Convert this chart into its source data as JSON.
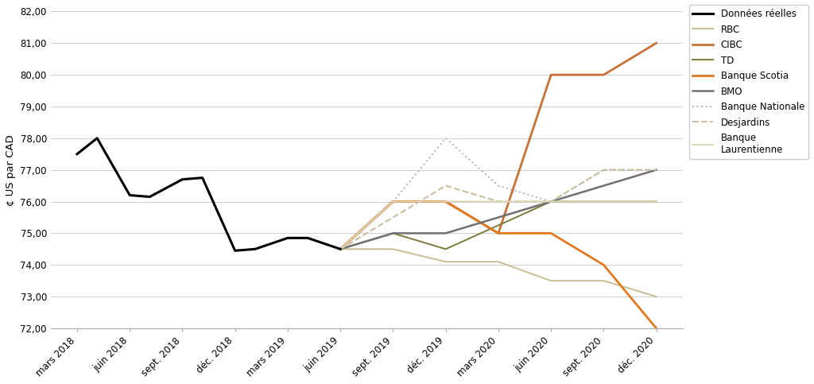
{
  "ylabel": "¢ US par CAD",
  "ylim": [
    72.0,
    82.0
  ],
  "yticks": [
    72.0,
    73.0,
    74.0,
    75.0,
    76.0,
    77.0,
    78.0,
    79.0,
    80.0,
    81.0,
    82.0
  ],
  "x_labels": [
    "mars 2018",
    "juin 2018",
    "sept. 2018",
    "déc. 2018",
    "mars 2019",
    "juin 2019",
    "sept. 2019",
    "déc. 2019",
    "mars 2020",
    "juin 2020",
    "sept. 2020",
    "déc. 2020"
  ],
  "donnees_reelles": {
    "color": "#000000",
    "linewidth": 2.2,
    "x": [
      0,
      0.38,
      1,
      1.38,
      2,
      2.38,
      3,
      3.38,
      4,
      4.38,
      5
    ],
    "y": [
      77.5,
      78.0,
      76.2,
      76.15,
      76.7,
      76.75,
      74.45,
      74.5,
      74.85,
      74.85,
      74.5
    ]
  },
  "forecasts": {
    "RBC": {
      "color": "#c8bc96",
      "linestyle": "solid",
      "linewidth": 1.4,
      "x": [
        5,
        6,
        7,
        8,
        9,
        10,
        11
      ],
      "y": [
        74.5,
        74.5,
        74.1,
        74.1,
        73.5,
        73.5,
        73.0
      ]
    },
    "CIBC": {
      "color": "#c87137",
      "linestyle": "solid",
      "linewidth": 2.0,
      "x": [
        5,
        6,
        7,
        8,
        9,
        10,
        11
      ],
      "y": [
        74.5,
        76.0,
        76.0,
        75.0,
        80.0,
        80.0,
        81.0
      ]
    },
    "TD": {
      "color": "#7a7a3a",
      "linestyle": "solid",
      "linewidth": 1.4,
      "x": [
        5,
        6,
        7,
        8,
        9,
        10,
        11
      ],
      "y": [
        74.5,
        75.0,
        74.5,
        75.25,
        76.0,
        76.0,
        76.0
      ]
    },
    "Banque Scotia": {
      "color": "#e07820",
      "linestyle": "solid",
      "linewidth": 2.0,
      "x": [
        5,
        6,
        7,
        8,
        9,
        10,
        11
      ],
      "y": [
        74.5,
        76.0,
        76.0,
        75.0,
        75.0,
        74.0,
        72.0
      ]
    },
    "BMO": {
      "color": "#707070",
      "linestyle": "solid",
      "linewidth": 1.8,
      "x": [
        5,
        6,
        7,
        8,
        9,
        10,
        11
      ],
      "y": [
        74.5,
        75.0,
        75.0,
        75.5,
        76.0,
        76.5,
        77.0
      ]
    },
    "Banque Nationale": {
      "color": "#b8b8b8",
      "linestyle": "dotted",
      "linewidth": 1.5,
      "x": [
        5,
        6,
        7,
        8,
        9,
        10,
        11
      ],
      "y": [
        74.5,
        76.0,
        78.0,
        76.5,
        76.0,
        77.0,
        77.0
      ]
    },
    "Desjardins": {
      "color": "#c8c0a0",
      "linestyle": "dashed",
      "linewidth": 1.5,
      "x": [
        5,
        6,
        7,
        8,
        9,
        10,
        11
      ],
      "y": [
        74.5,
        75.5,
        76.5,
        76.0,
        76.0,
        77.0,
        77.0
      ]
    },
    "Banque\nLaurentienne": {
      "color": "#dcd4b4",
      "linestyle": "solid",
      "linewidth": 1.4,
      "x": [
        5,
        6,
        7,
        8,
        9,
        10,
        11
      ],
      "y": [
        74.5,
        76.0,
        76.0,
        76.0,
        76.0,
        76.0,
        76.0
      ]
    }
  },
  "legend_labels": [
    "Données réelles",
    "RBC",
    "CIBC",
    "TD",
    "Banque Scotia",
    "BMO",
    "Banque Nationale",
    "Desjardins",
    "Banque\nLaurentienne"
  ],
  "background_color": "#ffffff",
  "grid_color": "#d0d0d0"
}
